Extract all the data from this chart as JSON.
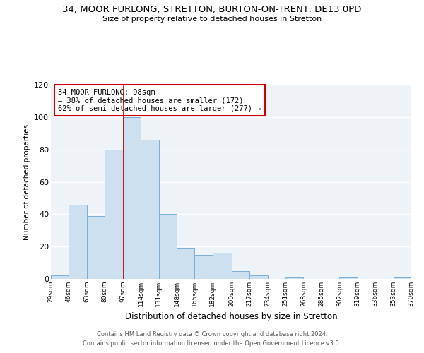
{
  "title": "34, MOOR FURLONG, STRETTON, BURTON-ON-TRENT, DE13 0PD",
  "subtitle": "Size of property relative to detached houses in Stretton",
  "xlabel": "Distribution of detached houses by size in Stretton",
  "ylabel": "Number of detached properties",
  "bin_edges": [
    29,
    46,
    63,
    80,
    97,
    114,
    131,
    148,
    165,
    182,
    200,
    217,
    234,
    251,
    268,
    285,
    302,
    319,
    336,
    353,
    370
  ],
  "bar_heights": [
    2,
    46,
    39,
    80,
    100,
    86,
    40,
    19,
    15,
    16,
    5,
    2,
    0,
    1,
    0,
    0,
    1,
    0,
    0,
    1
  ],
  "bar_face_color": "#cce0f0",
  "bar_edge_color": "#7aafd4",
  "property_value": 98,
  "annotation_title": "34 MOOR FURLONG: 98sqm",
  "annotation_line1": "← 38% of detached houses are smaller (172)",
  "annotation_line2": "62% of semi-detached houses are larger (277) →",
  "annotation_box_edge_color": "#cc0000",
  "annotation_box_face_color": "#ffffff",
  "vline_color": "#cc0000",
  "ylim": [
    0,
    120
  ],
  "yticks": [
    0,
    20,
    40,
    60,
    80,
    100,
    120
  ],
  "background_color": "#ffffff",
  "plot_background_color": "#eef3f8",
  "footer1": "Contains HM Land Registry data © Crown copyright and database right 2024.",
  "footer2": "Contains public sector information licensed under the Open Government Licence v3.0."
}
